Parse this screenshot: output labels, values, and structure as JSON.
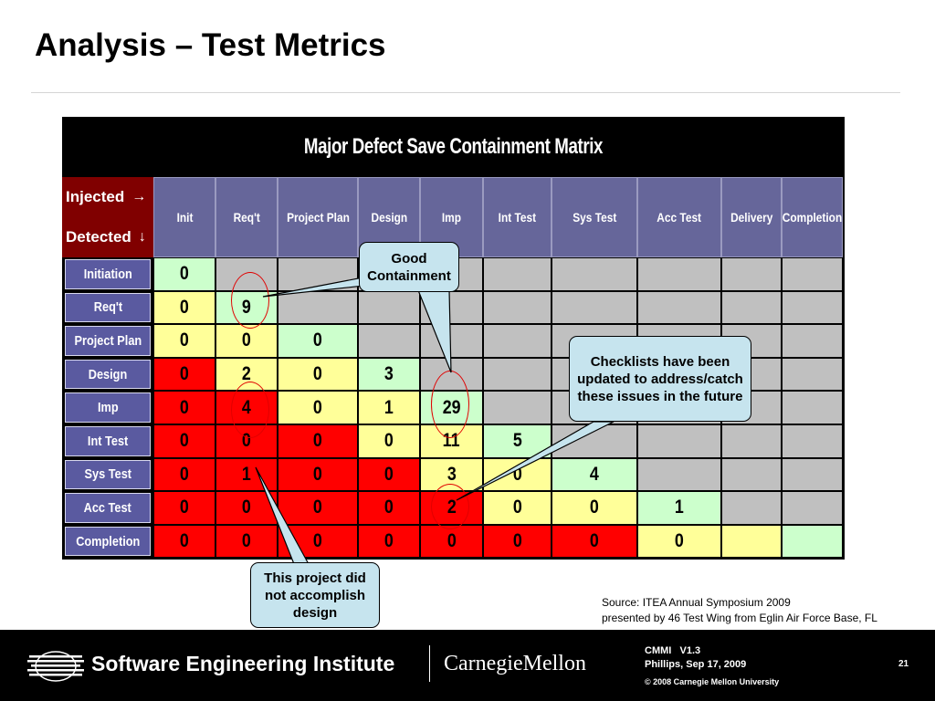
{
  "slide": {
    "title": "Analysis – Test Metrics"
  },
  "matrix": {
    "title": "Major Defect Save Containment Matrix",
    "injected_label": "Injected",
    "injected_arrow": "→",
    "detected_label": "Detected",
    "detected_arrow": "↓",
    "columns": [
      "Init",
      "Req't",
      "Project Plan",
      "Design",
      "Imp",
      "Int Test",
      "Sys Test",
      "Acc Test",
      "Delivery",
      "Completion"
    ],
    "rows": [
      {
        "label": "Initiation",
        "cells": [
          {
            "v": "0",
            "c": "grn"
          },
          {
            "v": "",
            "c": "gry"
          },
          {
            "v": "",
            "c": "gry"
          },
          {
            "v": "",
            "c": "gry"
          },
          {
            "v": "",
            "c": "gry"
          },
          {
            "v": "",
            "c": "gry"
          },
          {
            "v": "",
            "c": "gry"
          },
          {
            "v": "",
            "c": "gry"
          },
          {
            "v": "",
            "c": "gry"
          },
          {
            "v": "",
            "c": "gry"
          }
        ]
      },
      {
        "label": "Req't",
        "cells": [
          {
            "v": "0",
            "c": "yel"
          },
          {
            "v": "9",
            "c": "grn"
          },
          {
            "v": "",
            "c": "gry"
          },
          {
            "v": "",
            "c": "gry"
          },
          {
            "v": "",
            "c": "gry"
          },
          {
            "v": "",
            "c": "gry"
          },
          {
            "v": "",
            "c": "gry"
          },
          {
            "v": "",
            "c": "gry"
          },
          {
            "v": "",
            "c": "gry"
          },
          {
            "v": "",
            "c": "gry"
          }
        ]
      },
      {
        "label": "Project Plan",
        "cells": [
          {
            "v": "0",
            "c": "yel"
          },
          {
            "v": "0",
            "c": "yel"
          },
          {
            "v": "0",
            "c": "grn"
          },
          {
            "v": "",
            "c": "gry"
          },
          {
            "v": "",
            "c": "gry"
          },
          {
            "v": "",
            "c": "gry"
          },
          {
            "v": "",
            "c": "gry"
          },
          {
            "v": "",
            "c": "gry"
          },
          {
            "v": "",
            "c": "gry"
          },
          {
            "v": "",
            "c": "gry"
          }
        ]
      },
      {
        "label": "Design",
        "cells": [
          {
            "v": "0",
            "c": "red"
          },
          {
            "v": "2",
            "c": "yel"
          },
          {
            "v": "0",
            "c": "yel"
          },
          {
            "v": "3",
            "c": "grn"
          },
          {
            "v": "",
            "c": "gry"
          },
          {
            "v": "",
            "c": "gry"
          },
          {
            "v": "",
            "c": "gry"
          },
          {
            "v": "",
            "c": "gry"
          },
          {
            "v": "",
            "c": "gry"
          },
          {
            "v": "",
            "c": "gry"
          }
        ]
      },
      {
        "label": "Imp",
        "cells": [
          {
            "v": "0",
            "c": "red"
          },
          {
            "v": "4",
            "c": "red"
          },
          {
            "v": "0",
            "c": "yel"
          },
          {
            "v": "1",
            "c": "yel"
          },
          {
            "v": "29",
            "c": "grn"
          },
          {
            "v": "",
            "c": "gry"
          },
          {
            "v": "",
            "c": "gry"
          },
          {
            "v": "",
            "c": "gry"
          },
          {
            "v": "",
            "c": "gry"
          },
          {
            "v": "",
            "c": "gry"
          }
        ]
      },
      {
        "label": "Int Test",
        "cells": [
          {
            "v": "0",
            "c": "red"
          },
          {
            "v": "0",
            "c": "red"
          },
          {
            "v": "0",
            "c": "red"
          },
          {
            "v": "0",
            "c": "yel"
          },
          {
            "v": "11",
            "c": "yel"
          },
          {
            "v": "5",
            "c": "grn"
          },
          {
            "v": "",
            "c": "gry"
          },
          {
            "v": "",
            "c": "gry"
          },
          {
            "v": "",
            "c": "gry"
          },
          {
            "v": "",
            "c": "gry"
          }
        ]
      },
      {
        "label": "Sys Test",
        "cells": [
          {
            "v": "0",
            "c": "red"
          },
          {
            "v": "1",
            "c": "red"
          },
          {
            "v": "0",
            "c": "red"
          },
          {
            "v": "0",
            "c": "red"
          },
          {
            "v": "3",
            "c": "yel"
          },
          {
            "v": "0",
            "c": "yel"
          },
          {
            "v": "4",
            "c": "grn"
          },
          {
            "v": "",
            "c": "gry"
          },
          {
            "v": "",
            "c": "gry"
          },
          {
            "v": "",
            "c": "gry"
          }
        ]
      },
      {
        "label": "Acc Test",
        "cells": [
          {
            "v": "0",
            "c": "red"
          },
          {
            "v": "0",
            "c": "red"
          },
          {
            "v": "0",
            "c": "red"
          },
          {
            "v": "0",
            "c": "red"
          },
          {
            "v": "2",
            "c": "red"
          },
          {
            "v": "0",
            "c": "yel"
          },
          {
            "v": "0",
            "c": "yel"
          },
          {
            "v": "1",
            "c": "grn"
          },
          {
            "v": "",
            "c": "gry"
          },
          {
            "v": "",
            "c": "gry"
          }
        ]
      },
      {
        "label": "Completion",
        "cells": [
          {
            "v": "0",
            "c": "red"
          },
          {
            "v": "0",
            "c": "red"
          },
          {
            "v": "0",
            "c": "red"
          },
          {
            "v": "0",
            "c": "red"
          },
          {
            "v": "0",
            "c": "red"
          },
          {
            "v": "0",
            "c": "red"
          },
          {
            "v": "0",
            "c": "red"
          },
          {
            "v": "0",
            "c": "yel"
          },
          {
            "v": "",
            "c": "yel"
          },
          {
            "v": "",
            "c": "grn"
          }
        ]
      }
    ],
    "colors": {
      "red": "#ff0000",
      "yellow": "#ffff99",
      "green": "#ccffcc",
      "gray": "#c0c0c0",
      "header": "#66669a",
      "corner": "#800000"
    }
  },
  "callouts": {
    "good_containment": "Good Containment",
    "checklists": "Checklists have been updated to address/catch these issues in the future",
    "design": "This project did not accomplish design"
  },
  "source": {
    "line1": "Source: ITEA Annual Symposium 2009",
    "line2": "presented by 46 Test Wing from Eglin Air Force Base, FL"
  },
  "footer": {
    "sei": "Software Engineering Institute",
    "cmu": "CarnegieMellon",
    "meta_line1": "CMMI   V1.3",
    "meta_line2": "Phillips, Sep 17, 2009",
    "copyright": "© 2008 Carnegie Mellon University",
    "page": "21"
  }
}
